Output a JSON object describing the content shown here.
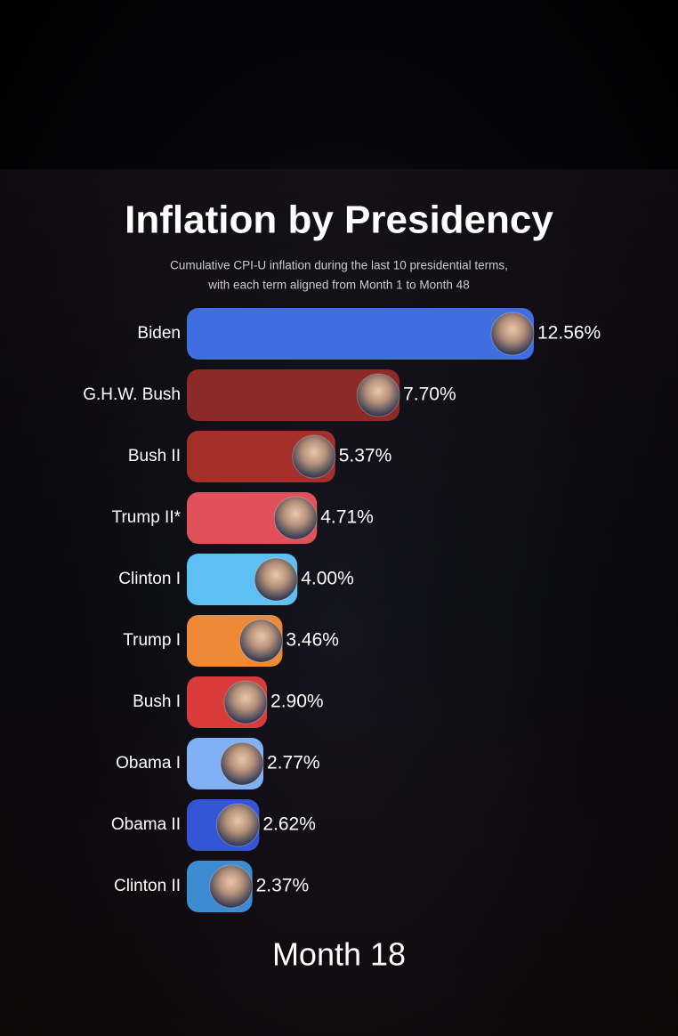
{
  "chart_data": {
    "type": "bar",
    "orientation": "horizontal",
    "title": "Inflation by Presidency",
    "subtitle": [
      "Cumulative CPI-U inflation during the last 10 presidential terms,",
      "with each term aligned from Month 1 to Month 48"
    ],
    "categories": [
      "Biden",
      "G.H.W. Bush",
      "Bush II",
      "Trump II*",
      "Clinton I",
      "Trump I",
      "Bush I",
      "Obama I",
      "Obama II",
      "Clinton II"
    ],
    "values": [
      12.56,
      7.7,
      5.37,
      4.71,
      4.0,
      3.46,
      2.9,
      2.77,
      2.62,
      2.37
    ],
    "value_labels": [
      "12.56%",
      "7.70%",
      "5.37%",
      "4.71%",
      "4.00%",
      "3.46%",
      "2.90%",
      "2.77%",
      "2.62%",
      "2.37%"
    ],
    "colors": [
      "#3f6ee0",
      "#8b2a27",
      "#a3302b",
      "#e0515a",
      "#5cc0f4",
      "#ee8a35",
      "#d93b3b",
      "#80b0f5",
      "#3456d6",
      "#3d8bd0"
    ],
    "annotation": "Month 18"
  }
}
